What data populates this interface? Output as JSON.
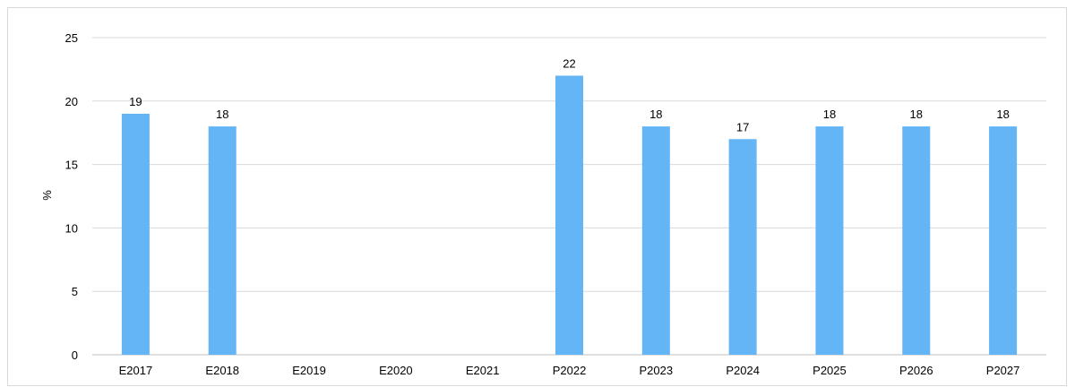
{
  "chart_data": {
    "type": "bar",
    "categories": [
      "E2017",
      "E2018",
      "E2019",
      "E2020",
      "E2021",
      "P2022",
      "P2023",
      "P2024",
      "P2025",
      "P2026",
      "P2027"
    ],
    "series": [
      {
        "values": [
          19,
          18,
          null,
          null,
          null,
          22,
          18,
          17,
          18,
          18,
          18
        ],
        "color": "#64b5f6"
      }
    ],
    "title": "",
    "xlabel": "",
    "ylabel": "%",
    "ylim": [
      0,
      25
    ],
    "yticks": [
      "0",
      "5",
      "10",
      "15",
      "20",
      "25"
    ],
    "grid": true,
    "gridColor": "#d9d9d9",
    "legend": "none"
  }
}
